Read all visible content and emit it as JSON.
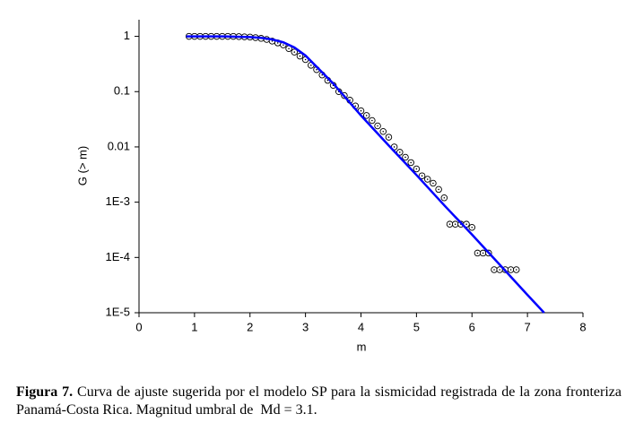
{
  "chart_data": {
    "type": "scatter",
    "xlabel": "m",
    "ylabel": "G (> m)",
    "xlim": [
      0,
      8
    ],
    "xticks": [
      0,
      1,
      2,
      3,
      4,
      5,
      6,
      7,
      8
    ],
    "ylim": [
      1e-05,
      2
    ],
    "yscale": "log",
    "yticks": [
      {
        "value": 1e-05,
        "label": "1E-5"
      },
      {
        "value": 0.0001,
        "label": "1E-4"
      },
      {
        "value": 0.001,
        "label": "1E-3"
      },
      0.01,
      0.1,
      1
    ],
    "series": [
      {
        "type": "scatter",
        "color": "#000000",
        "x": [
          0.9,
          1.0,
          1.1,
          1.2,
          1.3,
          1.4,
          1.5,
          1.6,
          1.7,
          1.8,
          1.9,
          2.0,
          2.1,
          2.2,
          2.3,
          2.4,
          2.5,
          2.6,
          2.7,
          2.8,
          2.9,
          3.0,
          3.1,
          3.2,
          3.3,
          3.4,
          3.5,
          3.6,
          3.7,
          3.8,
          3.9,
          4.0,
          4.1,
          4.2,
          4.3,
          4.4,
          4.5,
          4.6,
          4.7,
          4.8,
          4.9,
          5.0,
          5.1,
          5.2,
          5.3,
          5.4,
          5.5,
          5.6,
          5.7,
          5.8,
          5.9,
          6.0,
          6.1,
          6.2,
          6.3,
          6.4,
          6.5,
          6.6,
          6.7,
          6.8
        ],
        "values": [
          1,
          1,
          1,
          1,
          1,
          1,
          1,
          1,
          1,
          0.99,
          0.98,
          0.97,
          0.95,
          0.92,
          0.88,
          0.82,
          0.76,
          0.7,
          0.6,
          0.52,
          0.44,
          0.38,
          0.3,
          0.25,
          0.2,
          0.16,
          0.13,
          0.1,
          0.085,
          0.07,
          0.055,
          0.045,
          0.037,
          0.03,
          0.024,
          0.019,
          0.015,
          0.01,
          0.008,
          0.0065,
          0.0052,
          0.004,
          0.003,
          0.0026,
          0.0022,
          0.0017,
          0.0012,
          0.0004,
          0.0004,
          0.0004,
          0.0004,
          0.00035,
          0.00012,
          0.00012,
          0.00012,
          6e-05,
          6e-05,
          6e-05,
          6e-05,
          6e-05
        ]
      },
      {
        "type": "line",
        "color": "#0000ff",
        "x": [
          0.85,
          1.5,
          2.0,
          2.2,
          2.4,
          2.6,
          2.8,
          3.0,
          3.5,
          4.0,
          4.5,
          5.0,
          5.5,
          6.0,
          6.5,
          7.0,
          7.3
        ],
        "values": [
          1,
          1,
          0.97,
          0.94,
          0.88,
          0.78,
          0.63,
          0.45,
          0.14,
          0.037,
          0.0106,
          0.0031,
          0.00088,
          0.00026,
          7.4e-05,
          2.1e-05,
          1e-05
        ]
      }
    ]
  },
  "caption": {
    "label": "Figura 7.",
    "text": "Curva de ajuste sugerida por el modelo SP para la sismicidad registrada de la zona fronteriza Panamá-Costa Rica. Magnitud umbral de  Md = 3.1."
  }
}
